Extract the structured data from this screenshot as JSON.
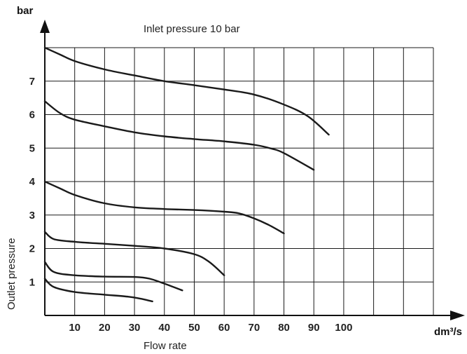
{
  "chart_data": {
    "type": "line",
    "title": "Inlet pressure 10 bar",
    "xlabel": "Flow rate",
    "ylabel": "Outlet pressure",
    "x_unit": "dm³/s",
    "y_unit": "bar",
    "xlim": [
      0,
      130
    ],
    "ylim": [
      0,
      8
    ],
    "x_ticks": [
      "10",
      "20",
      "30",
      "40",
      "50",
      "60",
      "70",
      "80",
      "90",
      "100"
    ],
    "y_ticks": [
      "1",
      "2",
      "3",
      "4",
      "5",
      "6",
      "7"
    ],
    "grid": true,
    "series": [
      {
        "values": [
          [
            0,
            8.0
          ],
          [
            5,
            7.8
          ],
          [
            10,
            7.6
          ],
          [
            20,
            7.35
          ],
          [
            30,
            7.17
          ],
          [
            40,
            7.0
          ],
          [
            50,
            6.88
          ],
          [
            60,
            6.75
          ],
          [
            70,
            6.6
          ],
          [
            80,
            6.3
          ],
          [
            88,
            5.95
          ],
          [
            95,
            5.4
          ]
        ]
      },
      {
        "values": [
          [
            0,
            6.4
          ],
          [
            5,
            6.05
          ],
          [
            10,
            5.85
          ],
          [
            20,
            5.65
          ],
          [
            30,
            5.47
          ],
          [
            40,
            5.35
          ],
          [
            50,
            5.27
          ],
          [
            60,
            5.2
          ],
          [
            70,
            5.1
          ],
          [
            76,
            4.98
          ],
          [
            80,
            4.85
          ],
          [
            90,
            4.35
          ]
        ]
      },
      {
        "values": [
          [
            0,
            4.0
          ],
          [
            5,
            3.8
          ],
          [
            10,
            3.6
          ],
          [
            20,
            3.35
          ],
          [
            30,
            3.23
          ],
          [
            40,
            3.18
          ],
          [
            50,
            3.15
          ],
          [
            60,
            3.1
          ],
          [
            65,
            3.05
          ],
          [
            70,
            2.9
          ],
          [
            75,
            2.7
          ],
          [
            80,
            2.45
          ]
        ]
      },
      {
        "values": [
          [
            0,
            2.5
          ],
          [
            3,
            2.28
          ],
          [
            10,
            2.2
          ],
          [
            20,
            2.14
          ],
          [
            30,
            2.08
          ],
          [
            40,
            2.0
          ],
          [
            50,
            1.83
          ],
          [
            55,
            1.6
          ],
          [
            60,
            1.2
          ]
        ]
      },
      {
        "values": [
          [
            0,
            1.6
          ],
          [
            3,
            1.3
          ],
          [
            10,
            1.2
          ],
          [
            20,
            1.16
          ],
          [
            30,
            1.15
          ],
          [
            35,
            1.1
          ],
          [
            40,
            0.95
          ],
          [
            46,
            0.75
          ]
        ]
      },
      {
        "values": [
          [
            0,
            1.1
          ],
          [
            3,
            0.85
          ],
          [
            10,
            0.7
          ],
          [
            20,
            0.62
          ],
          [
            28,
            0.56
          ],
          [
            32,
            0.5
          ],
          [
            36,
            0.42
          ]
        ]
      }
    ]
  }
}
